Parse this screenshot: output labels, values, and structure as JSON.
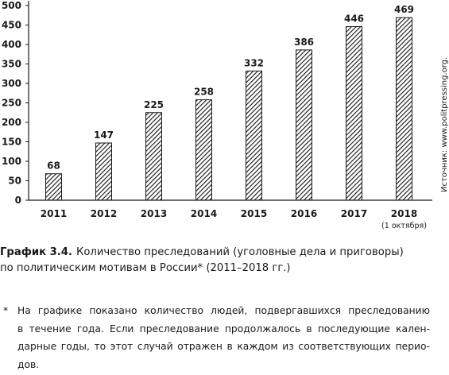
{
  "chart_data": {
    "type": "bar",
    "categories": [
      "2011",
      "2012",
      "2013",
      "2014",
      "2015",
      "2016",
      "2017",
      "2018"
    ],
    "category_sublabels": [
      "",
      "",
      "",
      "",
      "",
      "",
      "",
      "(1 октября)"
    ],
    "values": [
      68,
      147,
      225,
      258,
      332,
      386,
      446,
      469
    ],
    "ylim": [
      0,
      500
    ],
    "yticks": [
      0,
      50,
      100,
      150,
      200,
      250,
      300,
      350,
      400,
      450,
      500
    ],
    "grid": false,
    "bar_fill": "diagonal-hatch",
    "bar_color": "#1a1a1a",
    "source": "Источник: www.politpressing.org."
  },
  "caption": {
    "number": "График 3.4.",
    "line1": "Количество преследований (уголовные дела и приговоры)",
    "line2": "по политическим мотивам в России* (2011–2018 гг.)"
  },
  "footnote": {
    "marker": "*",
    "lines": [
      "На графике показано количество людей, подвергавшихся преследованию",
      "в течение года. Если преследование продолжалось в последующие кален-",
      "дарные годы, то этот случай отражен в каждом из соответствующих перио-",
      "дов."
    ]
  }
}
